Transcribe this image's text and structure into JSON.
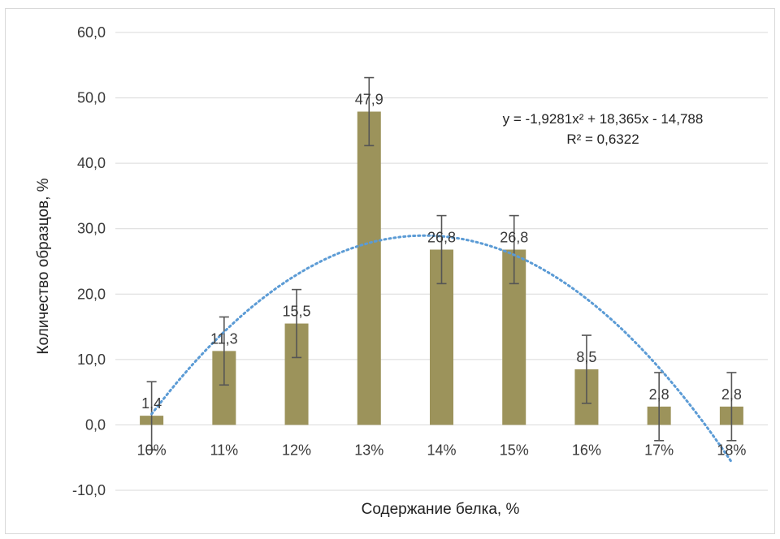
{
  "chart_data": {
    "type": "bar",
    "categories": [
      "10%",
      "11%",
      "12%",
      "13%",
      "14%",
      "15%",
      "16%",
      "17%",
      "18%"
    ],
    "values": [
      1.4,
      11.3,
      15.5,
      47.9,
      26.8,
      26.8,
      8.5,
      2.8,
      2.8
    ],
    "value_labels": [
      "1,4",
      "11,3",
      "15,5",
      "47,9",
      "26,8",
      "26,8",
      "8,5",
      "2,8",
      "2,8"
    ],
    "error": 5.2,
    "xlabel": "Содержание белка, %",
    "ylabel": "Количество образцов, %",
    "ylim": [
      -10,
      60
    ],
    "yticks": [
      -10,
      0,
      10,
      20,
      30,
      40,
      50,
      60
    ],
    "ytick_labels": [
      "-10,0",
      "0,0",
      "10,0",
      "20,0",
      "30,0",
      "40,0",
      "50,0",
      "60,0"
    ],
    "grid": true,
    "colors": {
      "bar": "#9c935b",
      "trend": "#5b9bd5",
      "grid": "#d9d9d9",
      "error": "#555555"
    },
    "trendline": {
      "type": "polynomial",
      "order": 2,
      "coefficients": [
        -1.9281,
        18.365,
        -14.788
      ],
      "equation": "y = -1,9281x² + 18,365x - 14,788",
      "r2": "R² = 0,6322"
    }
  }
}
